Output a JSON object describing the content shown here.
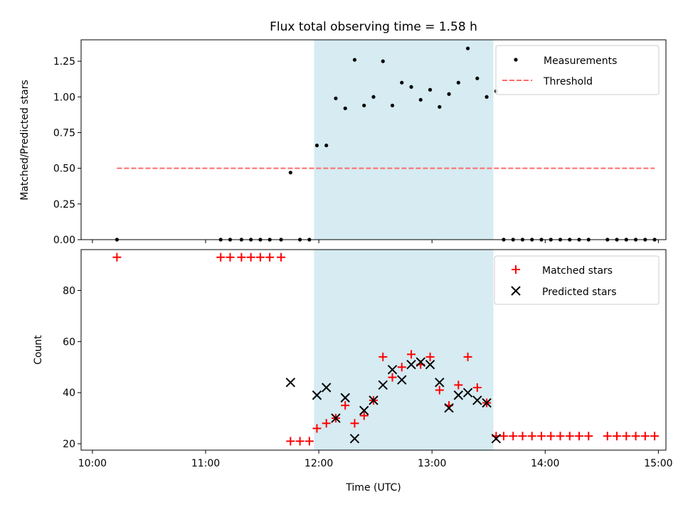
{
  "chart_data": [
    {
      "type": "scatter",
      "title": "Flux total observing time = 1.58 h",
      "xlabel": "",
      "ylabel": "Matched/Predicted stars",
      "x_unit": "minutes since 10:00 UTC",
      "xlim": [
        -6,
        304
      ],
      "ylim": [
        0,
        1.4
      ],
      "yticks": [
        0.0,
        0.25,
        0.5,
        0.75,
        1.0,
        1.25
      ],
      "ytick_labels": [
        "0.00",
        "0.25",
        "0.50",
        "0.75",
        "1.00",
        "1.25"
      ],
      "xticks": [
        0,
        60,
        120,
        180,
        240,
        300
      ],
      "span": {
        "x0": 117.5,
        "x1": 212.5,
        "color": "#add8e6"
      },
      "series": [
        {
          "name": "Measurements",
          "kind": "scatter-dot",
          "color": "#000000",
          "points": [
            [
              13,
              0
            ],
            [
              68,
              0
            ],
            [
              73,
              0
            ],
            [
              79,
              0
            ],
            [
              84,
              0
            ],
            [
              89,
              0
            ],
            [
              94,
              0
            ],
            [
              100,
              0
            ],
            [
              105,
              0.47
            ],
            [
              110,
              0
            ],
            [
              115,
              0
            ],
            [
              119,
              0.66
            ],
            [
              124,
              0.66
            ],
            [
              129,
              0.99
            ],
            [
              134,
              0.92
            ],
            [
              139,
              1.26
            ],
            [
              144,
              0.94
            ],
            [
              149,
              1.0
            ],
            [
              154,
              1.25
            ],
            [
              159,
              0.94
            ],
            [
              164,
              1.1
            ],
            [
              169,
              1.07
            ],
            [
              174,
              0.98
            ],
            [
              179,
              1.05
            ],
            [
              184,
              0.93
            ],
            [
              189,
              1.02
            ],
            [
              194,
              1.1
            ],
            [
              199,
              1.34
            ],
            [
              204,
              1.13
            ],
            [
              209,
              1.0
            ],
            [
              214,
              1.04
            ],
            [
              218,
              0
            ],
            [
              223,
              0
            ],
            [
              228,
              0
            ],
            [
              233,
              0
            ],
            [
              238,
              0
            ],
            [
              243,
              0
            ],
            [
              248,
              0
            ],
            [
              253,
              0
            ],
            [
              258,
              0
            ],
            [
              263,
              0
            ],
            [
              273,
              0
            ],
            [
              278,
              0
            ],
            [
              283,
              0
            ],
            [
              288,
              0
            ],
            [
              293,
              0
            ],
            [
              298,
              0
            ]
          ]
        },
        {
          "name": "Threshold",
          "kind": "dashed-line",
          "color": "#ff6b6b",
          "points": [
            [
              13,
              0.5
            ],
            [
              298,
              0.5
            ]
          ]
        }
      ],
      "legend_position": "top-right"
    },
    {
      "type": "scatter",
      "title": "",
      "xlabel": "Time (UTC)",
      "ylabel": "Count",
      "x_unit": "minutes since 10:00 UTC",
      "xlim": [
        -6,
        304
      ],
      "ylim": [
        17.5,
        96
      ],
      "yticks": [
        20,
        40,
        60,
        80
      ],
      "ytick_labels": [
        "20",
        "40",
        "60",
        "80"
      ],
      "xticks": [
        0,
        60,
        120,
        180,
        240,
        300
      ],
      "xtick_labels": [
        "10:00",
        "11:00",
        "12:00",
        "13:00",
        "14:00",
        "15:00"
      ],
      "span": {
        "x0": 117.5,
        "x1": 212.5,
        "color": "#add8e6"
      },
      "series": [
        {
          "name": "Matched stars",
          "kind": "plus",
          "color": "#ff0000",
          "points": [
            [
              13,
              93
            ],
            [
              68,
              93
            ],
            [
              73,
              93
            ],
            [
              79,
              93
            ],
            [
              84,
              93
            ],
            [
              89,
              93
            ],
            [
              94,
              93
            ],
            [
              100,
              93
            ],
            [
              105,
              21
            ],
            [
              110,
              21
            ],
            [
              115,
              21
            ],
            [
              119,
              26
            ],
            [
              124,
              28
            ],
            [
              129,
              30
            ],
            [
              134,
              35
            ],
            [
              139,
              28
            ],
            [
              144,
              31
            ],
            [
              149,
              37
            ],
            [
              154,
              54
            ],
            [
              159,
              46
            ],
            [
              164,
              50
            ],
            [
              169,
              55
            ],
            [
              174,
              51
            ],
            [
              179,
              54
            ],
            [
              184,
              41
            ],
            [
              189,
              35
            ],
            [
              194,
              43
            ],
            [
              199,
              54
            ],
            [
              204,
              42
            ],
            [
              209,
              36
            ],
            [
              214,
              23
            ],
            [
              218,
              23
            ],
            [
              223,
              23
            ],
            [
              228,
              23
            ],
            [
              233,
              23
            ],
            [
              238,
              23
            ],
            [
              243,
              23
            ],
            [
              248,
              23
            ],
            [
              253,
              23
            ],
            [
              258,
              23
            ],
            [
              263,
              23
            ],
            [
              273,
              23
            ],
            [
              278,
              23
            ],
            [
              283,
              23
            ],
            [
              288,
              23
            ],
            [
              293,
              23
            ],
            [
              298,
              23
            ]
          ]
        },
        {
          "name": "Predicted stars",
          "kind": "x",
          "color": "#000000",
          "points": [
            [
              105,
              44
            ],
            [
              119,
              39
            ],
            [
              124,
              42
            ],
            [
              129,
              30
            ],
            [
              134,
              38
            ],
            [
              139,
              22
            ],
            [
              144,
              33
            ],
            [
              149,
              37
            ],
            [
              154,
              43
            ],
            [
              159,
              49
            ],
            [
              164,
              45
            ],
            [
              169,
              51
            ],
            [
              174,
              52
            ],
            [
              179,
              51
            ],
            [
              184,
              44
            ],
            [
              189,
              34
            ],
            [
              194,
              39
            ],
            [
              199,
              40
            ],
            [
              204,
              37
            ],
            [
              209,
              36
            ],
            [
              214,
              22
            ]
          ]
        }
      ],
      "legend_position": "top-right"
    }
  ]
}
